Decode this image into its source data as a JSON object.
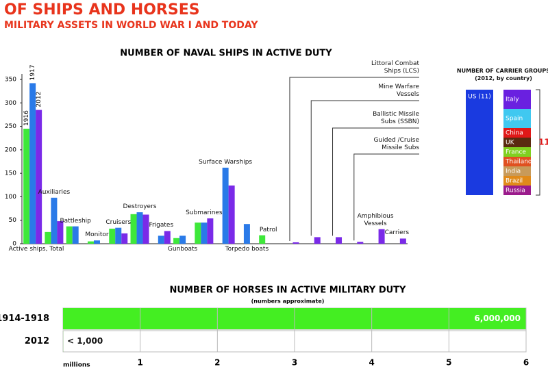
{
  "header": {
    "title": "OF SHIPS AND HORSES",
    "subtitle": "MILITARY ASSETS IN WORLD WAR I AND TODAY"
  },
  "chart_data": [
    {
      "type": "bar",
      "title": "NUMBER OF NAVAL SHIPS IN ACTIVE DUTY",
      "categories": [
        "Active ships, Total",
        "Auxiliaries",
        "Battleship",
        "Monitor",
        "Cruisers",
        "Destroyers",
        "Frigates",
        "Gunboats",
        "Submarines",
        "Surface Warships",
        "Torpedo boats",
        "Patrol",
        "Littoral Combat Ships (LCS)",
        "Mine Warfare Vessels",
        "Ballistic Missile Subs (SSBN)",
        "Guided /Cruise Missile Subs",
        "Amphibious Vessels",
        "Carriers"
      ],
      "series": [
        {
          "name": "1916",
          "color": "#3ee83a",
          "values": [
            245,
            25,
            37,
            5,
            32,
            63,
            null,
            12,
            45,
            null,
            null,
            18,
            null,
            null,
            null,
            null,
            null,
            null
          ]
        },
        {
          "name": "1917",
          "color": "#2a7ae8",
          "values": [
            342,
            98,
            37,
            7,
            34,
            67,
            17,
            17,
            45,
            162,
            42,
            null,
            null,
            null,
            null,
            null,
            null,
            null
          ]
        },
        {
          "name": "2012",
          "color": "#7a2ae8",
          "values": [
            285,
            48,
            null,
            null,
            22,
            62,
            27,
            null,
            54,
            124,
            null,
            null,
            3,
            14,
            14,
            4,
            31,
            11
          ]
        }
      ],
      "ylim": [
        0,
        350
      ],
      "yticks": [
        0,
        50,
        100,
        150,
        200,
        250,
        300,
        350
      ],
      "grid": false
    },
    {
      "type": "stacked-bar",
      "title": "NUMBER OF CARRIER GROUPS",
      "subtitle": "(2012, by country)",
      "categories": [
        null,
        null
      ],
      "series": [
        {
          "name": "US (11)",
          "color": "#1a3ae0",
          "values": [
            11,
            null
          ]
        },
        {
          "name": "Russia",
          "color": "#9b1b8c",
          "values": [
            null,
            1
          ]
        },
        {
          "name": "Brazil",
          "color": "#e08a1a",
          "values": [
            null,
            1
          ]
        },
        {
          "name": "India",
          "color": "#c89a5a",
          "values": [
            null,
            1
          ]
        },
        {
          "name": "Thailand",
          "color": "#e05020",
          "values": [
            null,
            1
          ]
        },
        {
          "name": "France",
          "color": "#80d020",
          "values": [
            null,
            1
          ]
        },
        {
          "name": "UK",
          "color": "#5a2a10",
          "values": [
            null,
            1
          ]
        },
        {
          "name": "China",
          "color": "#e01818",
          "values": [
            null,
            1
          ]
        },
        {
          "name": "Spain",
          "color": "#40c8f0",
          "values": [
            null,
            2
          ]
        },
        {
          "name": "Italy",
          "color": "#6a20e0",
          "values": [
            null,
            2
          ]
        }
      ],
      "total": 11,
      "total_color": "#e01818"
    },
    {
      "type": "hbar",
      "title": "NUMBER OF HORSES IN ACTIVE MILITARY DUTY",
      "subtitle": "(numbers approximate)",
      "categories": [
        "1914-1918",
        "2012"
      ],
      "values": [
        6,
        0.001
      ],
      "value_labels": [
        "6,000,000",
        "< 1,000"
      ],
      "color": "#44ee22",
      "xlabel": "millions",
      "xlim": [
        0,
        6
      ],
      "xticks": [
        1,
        2,
        3,
        4,
        5,
        6
      ],
      "grid": true
    }
  ]
}
